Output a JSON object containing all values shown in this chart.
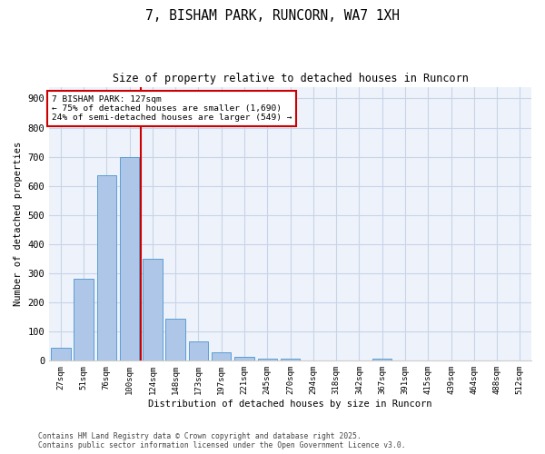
{
  "title1": "7, BISHAM PARK, RUNCORN, WA7 1XH",
  "title2": "Size of property relative to detached houses in Runcorn",
  "xlabel": "Distribution of detached houses by size in Runcorn",
  "ylabel": "Number of detached properties",
  "bar_labels": [
    "27sqm",
    "51sqm",
    "76sqm",
    "100sqm",
    "124sqm",
    "148sqm",
    "173sqm",
    "197sqm",
    "221sqm",
    "245sqm",
    "270sqm",
    "294sqm",
    "318sqm",
    "342sqm",
    "367sqm",
    "391sqm",
    "415sqm",
    "439sqm",
    "464sqm",
    "488sqm",
    "512sqm"
  ],
  "bar_values": [
    45,
    282,
    635,
    700,
    350,
    145,
    65,
    30,
    13,
    8,
    8,
    0,
    0,
    0,
    8,
    0,
    0,
    0,
    0,
    0,
    0
  ],
  "bar_color": "#aec6e8",
  "bar_edge_color": "#5a9fd4",
  "vline_color": "#cc0000",
  "annotation_title": "7 BISHAM PARK: 127sqm",
  "annotation_line1": "← 75% of detached houses are smaller (1,690)",
  "annotation_line2": "24% of semi-detached houses are larger (549) →",
  "annotation_box_color": "#cc0000",
  "ylim": [
    0,
    940
  ],
  "yticks": [
    0,
    100,
    200,
    300,
    400,
    500,
    600,
    700,
    800,
    900
  ],
  "footer1": "Contains HM Land Registry data © Crown copyright and database right 2025.",
  "footer2": "Contains public sector information licensed under the Open Government Licence v3.0.",
  "bg_color": "#eef2fb",
  "grid_color": "#c8d4e8"
}
